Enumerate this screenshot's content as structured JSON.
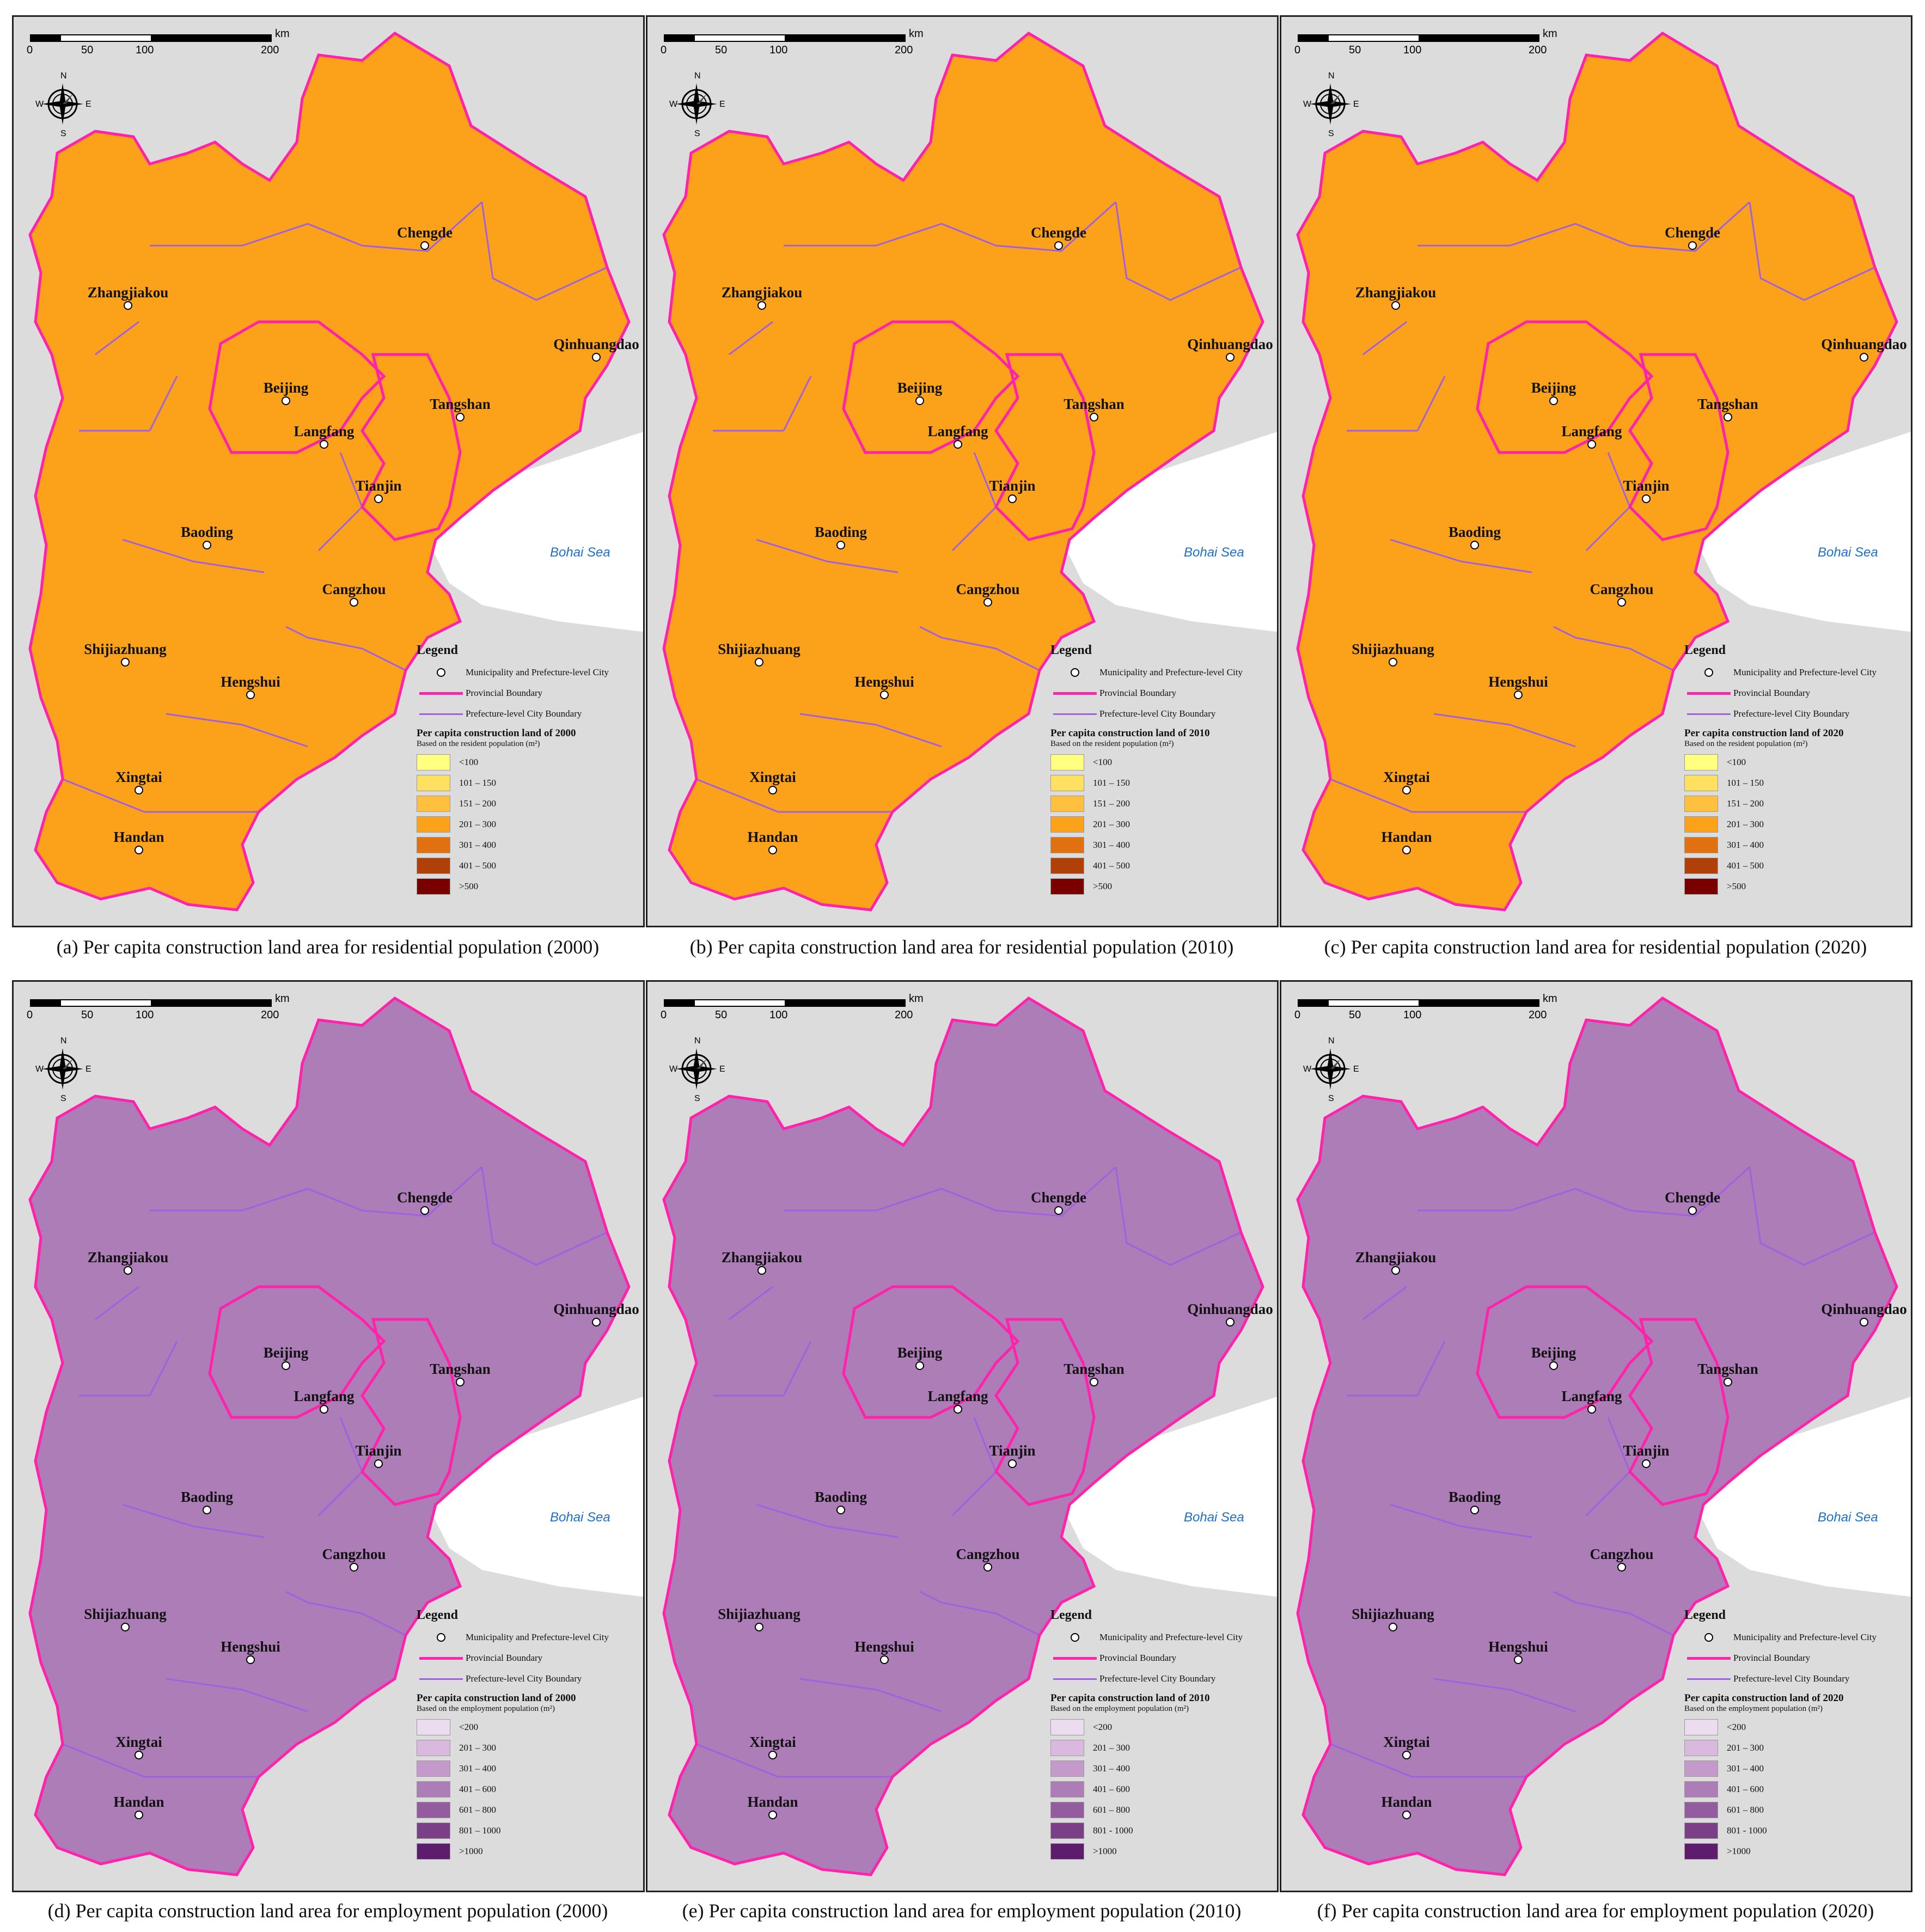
{
  "scale": {
    "labels": [
      "0",
      "50",
      "100",
      "200"
    ],
    "unit": "km"
  },
  "compass": {
    "n": "N",
    "s": "S",
    "e": "E",
    "w": "W"
  },
  "sea_label": "Bohai Sea",
  "legend_common": {
    "title": "Legend",
    "city_item": "Municipality and Prefecture-level City",
    "prov_item": "Provincial Boundary",
    "pref_item": "Prefecture-level City Boundary",
    "prov_color": "#ff22aa",
    "pref_color": "#a060e0"
  },
  "cities": [
    "Chengde",
    "Zhangjiakou",
    "Qinhuangdao",
    "Beijing",
    "Tangshan",
    "Langfang",
    "Tianjin",
    "Baoding",
    "Cangzhou",
    "Shijiazhuang",
    "Hengshui",
    "Xingtai",
    "Handan"
  ],
  "panels": [
    {
      "caption": "(a) Per capita construction land area for residential population (2000)",
      "legend_title": "Per capita construction land of 2000",
      "legend_note": "Based on the resident population (m²)",
      "palette": "res",
      "classes": [
        "<100",
        "101 – 150",
        "151 – 200",
        "201 – 300",
        "301 – 400",
        "401 – 500",
        ">500"
      ]
    },
    {
      "caption": "(b) Per capita construction land area for residential population (2010)",
      "legend_title": "Per capita construction land of 2010",
      "legend_note": "Based on the resident population (m²)",
      "palette": "res",
      "classes": [
        "<100",
        "101 – 150",
        "151 – 200",
        "201 – 300",
        "301 – 400",
        "401 – 500",
        ">500"
      ]
    },
    {
      "caption": "(c) Per capita construction land area for residential population (2020)",
      "legend_title": "Per capita construction land of 2020",
      "legend_note": "Based on the resident population (m²)",
      "palette": "res",
      "classes": [
        "<100",
        "101 – 150",
        "151 – 200",
        "201 – 300",
        "301 – 400",
        "401 – 500",
        ">500"
      ]
    },
    {
      "caption": "(d) Per capita construction land area for employment population (2000)",
      "legend_title": "Per capita construction land of 2000",
      "legend_note": "Based on the employment population (m²)",
      "palette": "emp",
      "classes": [
        "<200",
        "201 – 300",
        "301 – 400",
        "401 – 600",
        "601 – 800",
        "801 – 1000",
        ">1000"
      ]
    },
    {
      "caption": "(e) Per capita construction land area for employment population (2010)",
      "legend_title": "Per capita construction land of 2010",
      "legend_note": "Based on the employment population (m²)",
      "palette": "emp",
      "classes": [
        "<200",
        "201 – 300",
        "301 – 400",
        "401 – 600",
        "601 – 800",
        "801 - 1000",
        ">1000"
      ]
    },
    {
      "caption": "(f) Per capita construction land area for employment population (2020)",
      "legend_title": "Per capita construction land of 2020",
      "legend_note": "Based on the employment population (m²)",
      "palette": "emp",
      "classes": [
        "<200",
        "201 – 300",
        "301 – 400",
        "401 – 600",
        "601 – 800",
        "801 - 1000",
        ">1000"
      ]
    }
  ],
  "palettes": {
    "res": [
      "#ffff80",
      "#ffe060",
      "#ffc040",
      "#fca21a",
      "#e07010",
      "#b04008",
      "#7a0000"
    ],
    "emp": [
      "#ecdcef",
      "#d9b9de",
      "#c49acb",
      "#ad7db7",
      "#925c9e",
      "#7a3f87",
      "#5e1c6c"
    ]
  }
}
